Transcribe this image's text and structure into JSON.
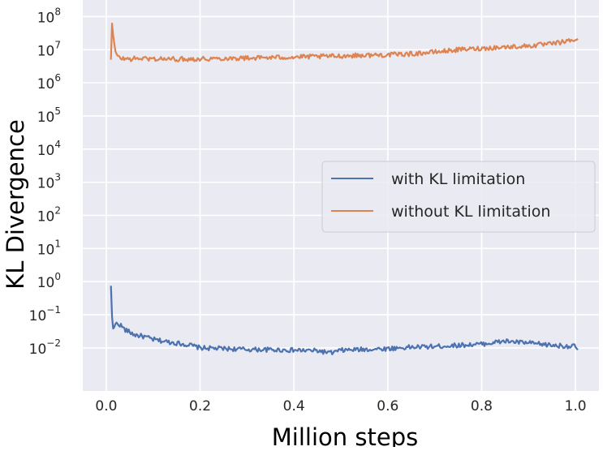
{
  "chart_data": {
    "type": "line",
    "title": "",
    "xlabel": "Million steps",
    "ylabel": "KL Divergence",
    "yscale": "log",
    "xlim": [
      -0.05,
      1.05
    ],
    "ylim_log10": [
      -3.3,
      8.5
    ],
    "xticks": [
      0.0,
      0.2,
      0.4,
      0.6,
      0.8,
      1.0
    ],
    "xtick_labels": [
      "0.0",
      "0.2",
      "0.4",
      "0.6",
      "0.8",
      "1.0"
    ],
    "yticks": [
      {
        "exp": 8,
        "base": "10",
        "power": "8"
      },
      {
        "exp": 7,
        "base": "10",
        "power": "7"
      },
      {
        "exp": 6,
        "base": "10",
        "power": "6"
      },
      {
        "exp": 5,
        "base": "10",
        "power": "5"
      },
      {
        "exp": 4,
        "base": "10",
        "power": "4"
      },
      {
        "exp": 3,
        "base": "10",
        "power": "3"
      },
      {
        "exp": 2,
        "base": "10",
        "power": "2"
      },
      {
        "exp": 1,
        "base": "10",
        "power": "1"
      },
      {
        "exp": 0,
        "base": "10",
        "power": "0"
      },
      {
        "exp": -1,
        "base": "10",
        "power": "−1"
      },
      {
        "exp": -2,
        "base": "10",
        "power": "−2"
      }
    ],
    "grid": true,
    "legend_position": "center-right",
    "series": [
      {
        "name": "with KL limitation",
        "color": "#4c72b0",
        "x": [
          0.01,
          0.012,
          0.015,
          0.02,
          0.03,
          0.04,
          0.05,
          0.06,
          0.08,
          0.1,
          0.12,
          0.15,
          0.18,
          0.2,
          0.25,
          0.3,
          0.35,
          0.4,
          0.45,
          0.48,
          0.5,
          0.55,
          0.6,
          0.65,
          0.7,
          0.75,
          0.8,
          0.85,
          0.9,
          0.95,
          1.0,
          1.005
        ],
        "y": [
          0.75,
          0.1,
          0.035,
          0.055,
          0.05,
          0.035,
          0.03,
          0.025,
          0.022,
          0.018,
          0.016,
          0.014,
          0.012,
          0.01,
          0.0095,
          0.009,
          0.0088,
          0.0085,
          0.0082,
          0.007,
          0.0085,
          0.009,
          0.0095,
          0.0105,
          0.011,
          0.012,
          0.013,
          0.016,
          0.014,
          0.012,
          0.011,
          0.009
        ]
      },
      {
        "name": "without KL limitation",
        "color": "#dd8452",
        "x": [
          0.01,
          0.012,
          0.015,
          0.02,
          0.025,
          0.03,
          0.05,
          0.07,
          0.1,
          0.15,
          0.2,
          0.25,
          0.3,
          0.35,
          0.4,
          0.45,
          0.5,
          0.55,
          0.6,
          0.65,
          0.7,
          0.75,
          0.8,
          0.85,
          0.9,
          0.95,
          1.0,
          1.005
        ],
        "y": [
          5000000,
          70000000,
          25000000,
          8000000,
          6000000,
          5500000,
          5200000,
          5500000,
          5300000,
          5200000,
          5300000,
          5500000,
          5600000,
          5800000,
          6000000,
          6200000,
          6500000,
          6800000,
          7000000,
          7500000,
          8500000,
          10000000,
          11000000,
          12000000,
          13000000,
          15000000,
          20000000,
          22000000
        ]
      }
    ]
  }
}
